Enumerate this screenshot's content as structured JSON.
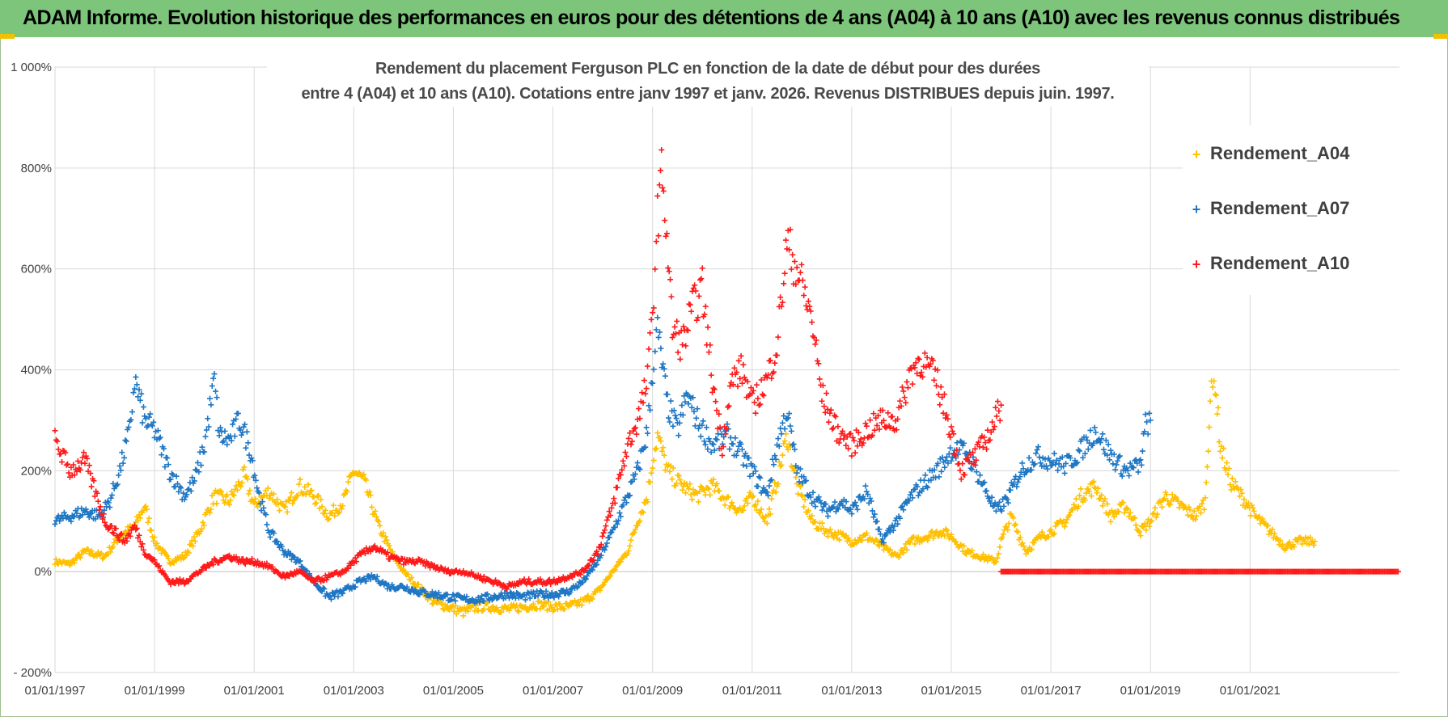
{
  "header": {
    "title": "ADAM Informe. Evolution historique des performances en euros pour des détentions de 4 ans (A04) à 10 ans (A10) avec les revenus connus distribués"
  },
  "chart_data": {
    "type": "scatter",
    "title_line1": "Rendement du placement Ferguson PLC en fonction de la date de début pour des durées",
    "title_line2": "entre 4 (A04) et 10 ans (A10).  Cotations entre janv 1997 et janv. 2026. Revenus DISTRIBUES depuis juin. 1997.",
    "x_axis": {
      "range": [
        1997.0,
        2024.0
      ],
      "tick_values": [
        1997,
        1999,
        2001,
        2003,
        2005,
        2007,
        2009,
        2011,
        2013,
        2015,
        2017,
        2019,
        2021
      ],
      "tick_labels": [
        "01/01/1997",
        "01/01/1999",
        "01/01/2001",
        "01/01/2003",
        "01/01/2005",
        "01/01/2007",
        "01/01/2009",
        "01/01/2011",
        "01/01/2013",
        "01/01/2015",
        "01/01/2017",
        "01/01/2019",
        "01/01/2021"
      ]
    },
    "y_axis": {
      "range": [
        -200,
        1000
      ],
      "tick_values": [
        -200,
        0,
        200,
        400,
        600,
        800,
        1000
      ],
      "tick_labels": [
        "- 200%",
        "0%",
        "200%",
        "400%",
        "600%",
        "800%",
        "1 000%"
      ]
    },
    "grid": true,
    "legend_position": "top-right",
    "colors": {
      "A04": "#ffc000",
      "A07": "#1f77c4",
      "A10": "#ff1a1a",
      "grid": "#d9d9d9",
      "axis_text": "#404040"
    },
    "series": [
      {
        "name": "Rendement_A04",
        "color": "#ffc000",
        "x": [
          1997.0,
          1997.3,
          1997.6,
          1998.0,
          1998.3,
          1998.6,
          1998.8,
          1999.0,
          1999.3,
          1999.6,
          1999.9,
          2000.2,
          2000.5,
          2000.8,
          2001.0,
          2001.3,
          2001.6,
          2001.9,
          2002.2,
          2002.5,
          2002.8,
          2003.0,
          2003.2,
          2003.5,
          2003.8,
          2004.0,
          2004.3,
          2004.6,
          2004.9,
          2005.2,
          2005.5,
          2005.8,
          2006.1,
          2006.4,
          2006.7,
          2007.0,
          2007.3,
          2007.6,
          2007.9,
          2008.2,
          2008.5,
          2008.7,
          2008.9,
          2009.0,
          2009.1,
          2009.3,
          2009.6,
          2009.9,
          2010.2,
          2010.5,
          2010.8,
          2011.0,
          2011.3,
          2011.5,
          2011.7,
          2011.9,
          2012.2,
          2012.5,
          2012.8,
          2013.0,
          2013.3,
          2013.6,
          2013.9,
          2014.2,
          2014.5,
          2014.8,
          2015.0,
          2015.3,
          2015.6,
          2015.9,
          2016.0,
          2016.2,
          2016.5,
          2016.8,
          2017.0,
          2017.3,
          2017.6,
          2017.9,
          2018.2,
          2018.5,
          2018.8,
          2019.0,
          2019.3,
          2019.6,
          2019.9,
          2020.1,
          2020.2,
          2020.3,
          2020.4,
          2020.6,
          2020.9,
          2021.1,
          2021.4,
          2021.7,
          2022.0,
          2022.3
        ],
        "y": [
          20,
          15,
          40,
          30,
          70,
          90,
          130,
          60,
          20,
          30,
          80,
          150,
          140,
          190,
          130,
          160,
          120,
          170,
          150,
          110,
          140,
          200,
          180,
          90,
          30,
          0,
          -30,
          -60,
          -70,
          -80,
          -70,
          -70,
          -75,
          -70,
          -65,
          -70,
          -70,
          -60,
          -40,
          0,
          40,
          100,
          150,
          220,
          270,
          200,
          170,
          150,
          170,
          140,
          120,
          150,
          100,
          180,
          270,
          170,
          100,
          80,
          70,
          60,
          70,
          50,
          30,
          60,
          70,
          80,
          70,
          40,
          30,
          20,
          60,
          110,
          40,
          70,
          80,
          100,
          150,
          170,
          110,
          130,
          80,
          100,
          150,
          130,
          110,
          140,
          340,
          380,
          250,
          180,
          140,
          110,
          80,
          50,
          60,
          60
        ]
      },
      {
        "name": "Rendement_A07",
        "color": "#1f77c4",
        "x": [
          1997.0,
          1997.3,
          1997.6,
          1997.9,
          1998.1,
          1998.3,
          1998.5,
          1998.6,
          1998.8,
          1999.0,
          1999.3,
          1999.6,
          1999.8,
          2000.0,
          2000.2,
          2000.3,
          2000.5,
          2000.7,
          2000.9,
          2001.1,
          2001.3,
          2001.6,
          2001.9,
          2002.2,
          2002.5,
          2002.8,
          2003.1,
          2003.4,
          2003.7,
          2004.0,
          2004.3,
          2004.6,
          2004.9,
          2005.2,
          2005.5,
          2005.8,
          2006.1,
          2006.4,
          2006.7,
          2007.0,
          2007.3,
          2007.6,
          2007.9,
          2008.2,
          2008.5,
          2008.7,
          2008.9,
          2009.0,
          2009.1,
          2009.3,
          2009.5,
          2009.7,
          2009.9,
          2010.2,
          2010.5,
          2010.8,
          2011.0,
          2011.3,
          2011.5,
          2011.7,
          2011.9,
          2012.2,
          2012.5,
          2012.8,
          2013.0,
          2013.3,
          2013.6,
          2013.9,
          2014.2,
          2014.5,
          2014.8,
          2015.0,
          2015.3,
          2015.6,
          2015.9,
          2016.1,
          2016.4,
          2016.7,
          2017.0,
          2017.3,
          2017.6,
          2017.9,
          2018.2,
          2018.5,
          2018.8,
          2018.9,
          2019.0
        ],
        "y": [
          100,
          110,
          120,
          110,
          140,
          200,
          280,
          380,
          300,
          280,
          200,
          150,
          180,
          250,
          380,
          270,
          260,
          300,
          250,
          150,
          80,
          40,
          20,
          -20,
          -50,
          -40,
          -20,
          -10,
          -30,
          -30,
          -40,
          -45,
          -50,
          -55,
          -55,
          -50,
          -45,
          -50,
          -45,
          -45,
          -40,
          -20,
          20,
          80,
          150,
          200,
          280,
          400,
          480,
          330,
          280,
          350,
          300,
          250,
          270,
          230,
          200,
          150,
          250,
          320,
          200,
          150,
          120,
          140,
          120,
          160,
          60,
          100,
          150,
          180,
          210,
          240,
          240,
          180,
          120,
          140,
          200,
          230,
          220,
          210,
          240,
          280,
          230,
          200,
          210,
          290,
          300
        ]
      },
      {
        "name": "Rendement_A10",
        "color": "#ff1a1a",
        "x": [
          1997.0,
          1997.3,
          1997.6,
          1997.8,
          1998.0,
          1998.2,
          1998.4,
          1998.6,
          1998.8,
          1999.0,
          1999.3,
          1999.6,
          1999.9,
          2000.2,
          2000.5,
          2000.8,
          2001.0,
          2001.3,
          2001.6,
          2001.9,
          2002.2,
          2002.5,
          2002.8,
          2003.1,
          2003.4,
          2003.7,
          2004.0,
          2004.3,
          2004.6,
          2004.9,
          2005.2,
          2005.5,
          2005.8,
          2006.1,
          2006.4,
          2006.7,
          2007.0,
          2007.3,
          2007.6,
          2007.9,
          2008.2,
          2008.5,
          2008.7,
          2008.9,
          2009.0,
          2009.1,
          2009.2,
          2009.4,
          2009.6,
          2009.8,
          2010.0,
          2010.2,
          2010.4,
          2010.6,
          2010.8,
          2011.0,
          2011.3,
          2011.5,
          2011.7,
          2011.9,
          2012.2,
          2012.4,
          2012.7,
          2013.0,
          2013.3,
          2013.6,
          2013.9,
          2014.2,
          2014.4,
          2014.7,
          2015.0,
          2015.2,
          2015.5,
          2015.8,
          2016.0
        ],
        "y": [
          260,
          200,
          220,
          160,
          100,
          80,
          60,
          90,
          40,
          20,
          -20,
          -20,
          0,
          20,
          30,
          20,
          20,
          10,
          -10,
          0,
          -20,
          -10,
          0,
          30,
          50,
          30,
          20,
          20,
          10,
          0,
          0,
          -10,
          -20,
          -30,
          -20,
          -20,
          -20,
          -10,
          0,
          40,
          130,
          250,
          300,
          380,
          520,
          700,
          800,
          480,
          450,
          520,
          560,
          380,
          250,
          380,
          400,
          330,
          380,
          450,
          650,
          600,
          500,
          350,
          280,
          250,
          280,
          300,
          300,
          400,
          420,
          380,
          280,
          200,
          230,
          280,
          330
        ]
      }
    ],
    "legend": [
      "Rendement_A04",
      "Rendement_A07",
      "Rendement_A10"
    ]
  }
}
